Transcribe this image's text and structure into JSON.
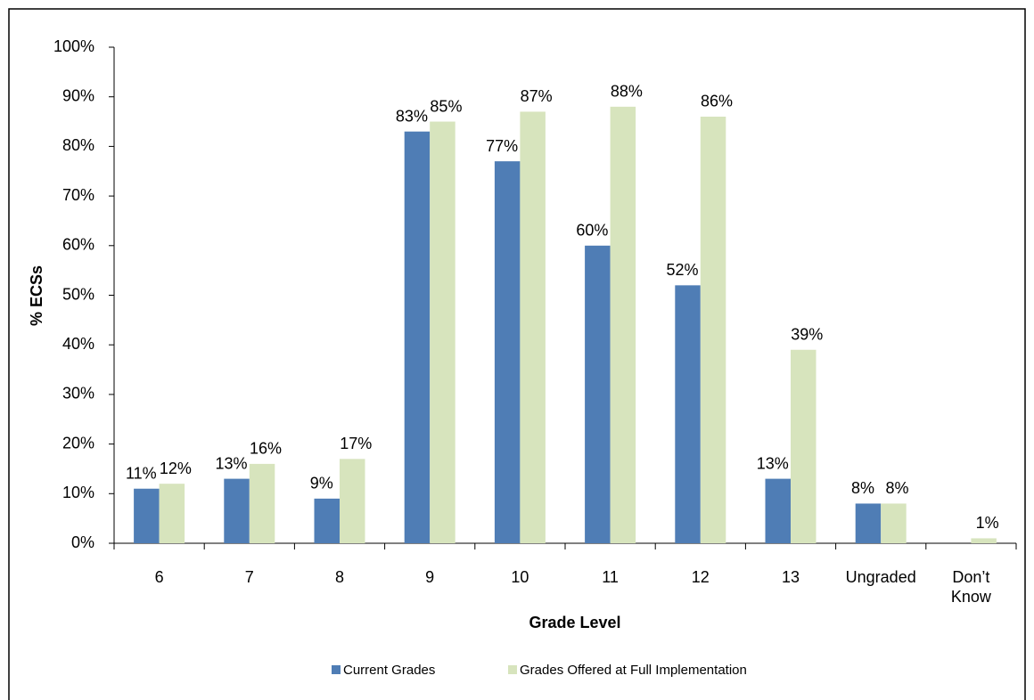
{
  "chart_data": {
    "type": "bar",
    "x_label": "Grade Level",
    "y_label": "% ECSs",
    "categories": [
      "6",
      "7",
      "8",
      "9",
      "10",
      "11",
      "12",
      "13",
      "Ungraded",
      "Don’t Know"
    ],
    "series": [
      {
        "name": "Current Grades",
        "color": "#4f7db5",
        "values": [
          11,
          13,
          9,
          83,
          77,
          60,
          52,
          13,
          8,
          null
        ],
        "value_labels": [
          "11%",
          "13%",
          "9%",
          "83%",
          "77%",
          "60%",
          "52%",
          "13%",
          "8%",
          null
        ]
      },
      {
        "name": "Grades Offered at Full Implementation",
        "color": "#d7e4bd",
        "values": [
          12,
          16,
          17,
          85,
          87,
          88,
          86,
          39,
          8,
          1
        ],
        "value_labels": [
          "12%",
          "16%",
          "17%",
          "85%",
          "87%",
          "88%",
          "86%",
          "39%",
          "8%",
          "1%"
        ]
      }
    ],
    "ylim": [
      0,
      100
    ],
    "yticks": [
      {
        "value": 0,
        "label": "0%"
      },
      {
        "value": 10,
        "label": "10%"
      },
      {
        "value": 20,
        "label": "20%"
      },
      {
        "value": 30,
        "label": "30%"
      },
      {
        "value": 40,
        "label": "40%"
      },
      {
        "value": 50,
        "label": "50%"
      },
      {
        "value": 60,
        "label": "60%"
      },
      {
        "value": 70,
        "label": "70%"
      },
      {
        "value": 80,
        "label": "80%"
      },
      {
        "value": 90,
        "label": "90%"
      },
      {
        "value": 100,
        "label": "100%"
      }
    ],
    "legend": "bottom"
  }
}
